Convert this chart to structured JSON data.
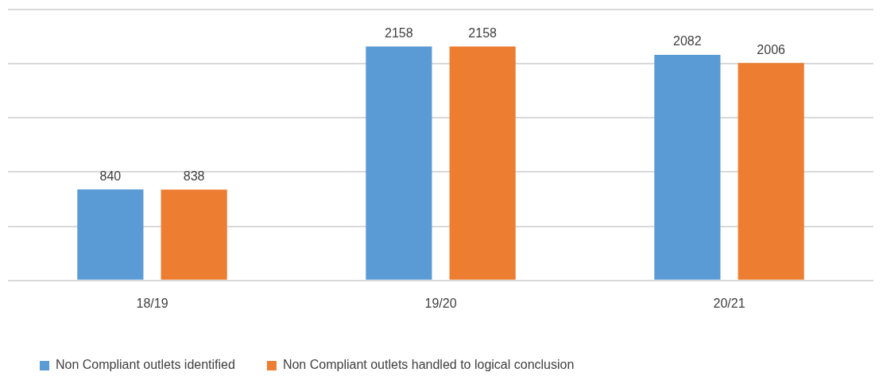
{
  "chart_data": {
    "type": "bar",
    "categories": [
      "18/19",
      "19/20",
      "20/21"
    ],
    "series": [
      {
        "name": "Non Compliant outlets identified",
        "color": "#5b9bd5",
        "values": [
          840,
          2158,
          2082
        ]
      },
      {
        "name": "Non Compliant outlets handled to logical conclusion",
        "color": "#ed7d31",
        "values": [
          838,
          2158,
          2006
        ]
      }
    ],
    "ylim": [
      0,
      2500
    ],
    "yticks": [
      {
        "value": 0,
        "label": null
      },
      {
        "value": 500,
        "label": null
      },
      {
        "value": 1000,
        "label": null
      },
      {
        "value": 1500,
        "label": null
      },
      {
        "value": 2000,
        "label": null
      },
      {
        "value": 2500,
        "label": null
      }
    ],
    "tick_labels": "x",
    "grid": "y",
    "legend": "bottom left",
    "data_labels": true
  }
}
